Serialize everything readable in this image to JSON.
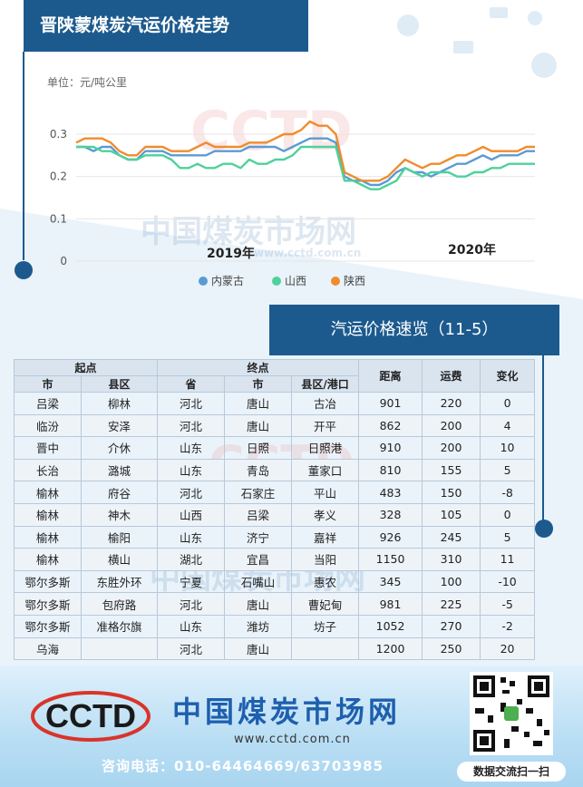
{
  "header": {
    "title": "晋陕蒙煤炭汽运价格走势"
  },
  "chart_data": {
    "type": "line",
    "unit_label": "单位：元/吨公里",
    "yticks": [
      "0",
      "0.1",
      "0.2",
      "0.3"
    ],
    "ylim": [
      0,
      0.33
    ],
    "year_labels": [
      "2019年",
      "2020年"
    ],
    "legend": [
      "内蒙古",
      "山西",
      "陕西"
    ],
    "colors": {
      "内蒙古": "#5b9bd5",
      "山西": "#4fd19a",
      "陕西": "#ef8c2d"
    },
    "series": [
      {
        "name": "内蒙古",
        "values": [
          0.27,
          0.27,
          0.26,
          0.27,
          0.27,
          0.25,
          0.24,
          0.24,
          0.26,
          0.26,
          0.26,
          0.25,
          0.25,
          0.25,
          0.25,
          0.25,
          0.26,
          0.26,
          0.26,
          0.26,
          0.27,
          0.27,
          0.27,
          0.27,
          0.26,
          0.27,
          0.28,
          0.29,
          0.29,
          0.29,
          0.28,
          0.2,
          0.19,
          0.19,
          0.18,
          0.18,
          0.19,
          0.21,
          0.22,
          0.21,
          0.21,
          0.2,
          0.21,
          0.22,
          0.23,
          0.23,
          0.24,
          0.25,
          0.24,
          0.25,
          0.25,
          0.25,
          0.26,
          0.26
        ]
      },
      {
        "name": "山西",
        "values": [
          0.27,
          0.27,
          0.27,
          0.26,
          0.26,
          0.25,
          0.24,
          0.24,
          0.25,
          0.25,
          0.25,
          0.24,
          0.22,
          0.22,
          0.23,
          0.22,
          0.22,
          0.23,
          0.23,
          0.22,
          0.24,
          0.23,
          0.23,
          0.24,
          0.24,
          0.25,
          0.27,
          0.27,
          0.27,
          0.27,
          0.27,
          0.19,
          0.19,
          0.18,
          0.17,
          0.17,
          0.18,
          0.19,
          0.22,
          0.21,
          0.2,
          0.21,
          0.21,
          0.21,
          0.2,
          0.2,
          0.21,
          0.21,
          0.22,
          0.22,
          0.23,
          0.23,
          0.23,
          0.23
        ]
      },
      {
        "name": "陕西",
        "values": [
          0.28,
          0.29,
          0.29,
          0.29,
          0.28,
          0.26,
          0.25,
          0.25,
          0.27,
          0.27,
          0.27,
          0.26,
          0.26,
          0.26,
          0.27,
          0.28,
          0.27,
          0.27,
          0.27,
          0.27,
          0.28,
          0.28,
          0.28,
          0.29,
          0.3,
          0.3,
          0.31,
          0.33,
          0.32,
          0.32,
          0.3,
          0.21,
          0.2,
          0.19,
          0.19,
          0.19,
          0.2,
          0.22,
          0.24,
          0.23,
          0.22,
          0.23,
          0.23,
          0.24,
          0.25,
          0.25,
          0.26,
          0.27,
          0.26,
          0.26,
          0.26,
          0.26,
          0.27,
          0.27
        ]
      }
    ]
  },
  "section2": {
    "title": "汽运价格速览（11-5）"
  },
  "table": {
    "group_headers": {
      "origin": "起点",
      "dest": "终点",
      "distance": "距离",
      "fee": "运费",
      "change": "变化"
    },
    "sub_headers": [
      "市",
      "县区",
      "省",
      "市",
      "县区/港口"
    ],
    "rows": [
      [
        "吕梁",
        "柳林",
        "河北",
        "唐山",
        "古冶",
        "901",
        "220",
        "0"
      ],
      [
        "临汾",
        "安泽",
        "河北",
        "唐山",
        "开平",
        "862",
        "200",
        "4"
      ],
      [
        "晋中",
        "介休",
        "山东",
        "日照",
        "日照港",
        "910",
        "200",
        "10"
      ],
      [
        "长治",
        "潞城",
        "山东",
        "青岛",
        "董家口",
        "810",
        "155",
        "5"
      ],
      [
        "榆林",
        "府谷",
        "河北",
        "石家庄",
        "平山",
        "483",
        "150",
        "-8"
      ],
      [
        "榆林",
        "神木",
        "山西",
        "吕梁",
        "孝义",
        "328",
        "105",
        "0"
      ],
      [
        "榆林",
        "榆阳",
        "山东",
        "济宁",
        "嘉祥",
        "926",
        "245",
        "5"
      ],
      [
        "榆林",
        "横山",
        "湖北",
        "宜昌",
        "当阳",
        "1150",
        "310",
        "11"
      ],
      [
        "鄂尔多斯",
        "东胜外环",
        "宁夏",
        "石嘴山",
        "惠农",
        "345",
        "100",
        "-10"
      ],
      [
        "鄂尔多斯",
        "包府路",
        "河北",
        "唐山",
        "曹妃甸",
        "981",
        "225",
        "-5"
      ],
      [
        "鄂尔多斯",
        "准格尔旗",
        "山东",
        "潍坊",
        "坊子",
        "1052",
        "270",
        "-2"
      ],
      [
        "乌海",
        "",
        "河北",
        "唐山",
        "",
        "1200",
        "250",
        "20"
      ]
    ]
  },
  "watermark": {
    "logo": "CCTD",
    "cn": "中国煤炭市场网",
    "url": "www.cctd.com.cn"
  },
  "footer": {
    "logo": "CCTD",
    "brand": "中国煤炭市场网",
    "site": "www.cctd.com.cn",
    "phone": "咨询电话：010-64464669/63703985",
    "qr_caption": "数据交流扫一扫"
  }
}
